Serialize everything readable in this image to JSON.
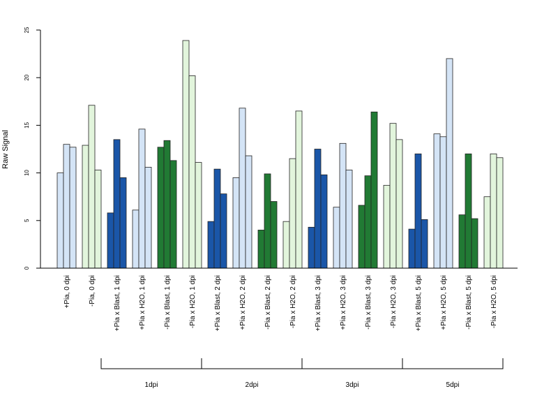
{
  "chart_data": {
    "type": "bar",
    "ylabel": "Raw Signal",
    "xlabel": "",
    "ylim": [
      0,
      25
    ],
    "yticks": [
      0,
      5,
      10,
      15,
      20,
      25
    ],
    "grid": false,
    "colors": {
      "light_blue": "#d4e4f6",
      "dark_blue": "#1a56a8",
      "light_green": "#e2f5dc",
      "dark_green": "#217a34"
    },
    "categories": [
      {
        "label": "+Pia, 0 dpi",
        "color": "light_blue",
        "values": [
          10.0,
          13.0,
          12.7
        ]
      },
      {
        "label": "-Pia, 0 dpi",
        "color": "light_green",
        "values": [
          12.9,
          17.1,
          10.3
        ]
      },
      {
        "label": "+Pia x Blast, 1 dpi",
        "color": "dark_blue",
        "values": [
          5.8,
          13.5,
          9.5
        ]
      },
      {
        "label": "+Pia x H2O, 1 dpi",
        "color": "light_blue",
        "values": [
          6.1,
          14.6,
          10.6
        ]
      },
      {
        "label": "-Pia x Blast, 1 dpi",
        "color": "dark_green",
        "values": [
          12.7,
          13.4,
          11.3
        ]
      },
      {
        "label": "-Pia x H2O, 1 dpi",
        "color": "light_green",
        "values": [
          23.9,
          20.2,
          11.1
        ]
      },
      {
        "label": "+Pia x Blast, 2 dpi",
        "color": "dark_blue",
        "values": [
          4.9,
          10.4,
          7.8
        ]
      },
      {
        "label": "+Pia x H2O, 2 dpi",
        "color": "light_blue",
        "values": [
          9.5,
          16.8,
          11.8
        ]
      },
      {
        "label": "-Pia x Blast, 2 dpi",
        "color": "dark_green",
        "values": [
          4.0,
          9.9,
          7.0
        ]
      },
      {
        "label": "-Pia x H2O, 2 dpi",
        "color": "light_green",
        "values": [
          4.9,
          11.5,
          16.5
        ]
      },
      {
        "label": "+Pia x Blast, 3 dpi",
        "color": "dark_blue",
        "values": [
          4.3,
          12.5,
          9.8
        ]
      },
      {
        "label": "+Pia x H2O, 3 dpi",
        "color": "light_blue",
        "values": [
          6.4,
          13.1,
          10.3
        ]
      },
      {
        "label": "-Pia x Blast, 3 dpi",
        "color": "dark_green",
        "values": [
          6.6,
          9.7,
          16.4
        ]
      },
      {
        "label": "-Pia x H2O, 3 dpi",
        "color": "light_green",
        "values": [
          8.7,
          15.2,
          13.5
        ]
      },
      {
        "label": "+Pia x Blast, 5 dpi",
        "color": "dark_blue",
        "values": [
          4.1,
          12.0,
          5.1
        ]
      },
      {
        "label": "+Pia x H2O, 5 dpi",
        "color": "light_blue",
        "values": [
          14.1,
          13.8,
          22.0
        ]
      },
      {
        "label": "-Pia x Blast, 5 dpi",
        "color": "dark_green",
        "values": [
          5.6,
          12.0,
          5.2
        ]
      },
      {
        "label": "-Pia x H2O, 5 dpi",
        "color": "light_green",
        "values": [
          7.5,
          12.0,
          11.6
        ]
      }
    ],
    "groups": [
      {
        "label": "1dpi",
        "from": 2,
        "to": 5
      },
      {
        "label": "2dpi",
        "from": 6,
        "to": 9
      },
      {
        "label": "3dpi",
        "from": 10,
        "to": 13
      },
      {
        "label": "5dpi",
        "from": 14,
        "to": 17
      }
    ]
  }
}
